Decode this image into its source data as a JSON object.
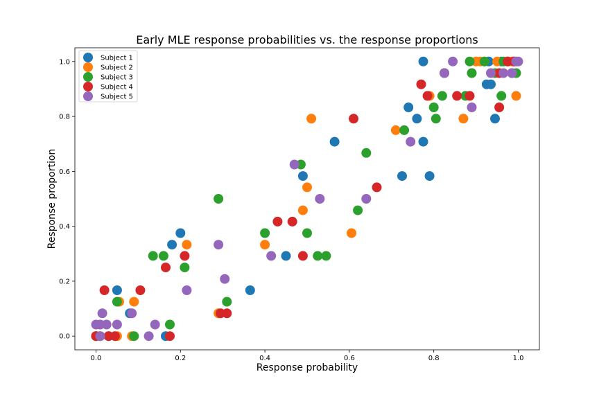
{
  "colors": {
    "Subject 1": "#1f77b4",
    "Subject 2": "#ff7f0e",
    "Subject 3": "#2ca02c",
    "Subject 4": "#d62728",
    "Subject 5": "#9467bd"
  },
  "chart_data": {
    "type": "scatter",
    "title": "Early MLE response probabilities vs. the response proportions",
    "xlabel": "Response probability",
    "ylabel": "Response proportion",
    "xlim": [
      -0.05,
      1.05
    ],
    "ylim": [
      -0.05,
      1.05
    ],
    "xticks": [
      0.0,
      0.2,
      0.4,
      0.6,
      0.8,
      1.0
    ],
    "yticks": [
      0.0,
      0.2,
      0.4,
      0.6,
      0.8,
      1.0
    ],
    "tick_labels": [
      "0.0",
      "0.2",
      "0.4",
      "0.6",
      "0.8",
      "1.0"
    ],
    "grid": false,
    "legend": "top-left",
    "series": [
      {
        "name": "Subject 1",
        "points": [
          [
            0.0,
            0.0
          ],
          [
            0.01,
            0.0
          ],
          [
            0.03,
            0.0
          ],
          [
            0.05,
            0.167
          ],
          [
            0.08,
            0.083
          ],
          [
            0.165,
            0.0
          ],
          [
            0.18,
            0.333
          ],
          [
            0.2,
            0.375
          ],
          [
            0.365,
            0.167
          ],
          [
            0.45,
            0.292
          ],
          [
            0.49,
            0.583
          ],
          [
            0.565,
            0.708
          ],
          [
            0.725,
            0.583
          ],
          [
            0.74,
            0.833
          ],
          [
            0.76,
            0.792
          ],
          [
            0.775,
            0.708
          ],
          [
            0.775,
            1.0
          ],
          [
            0.79,
            0.583
          ],
          [
            0.925,
            0.917
          ],
          [
            0.935,
            0.917
          ],
          [
            0.945,
            0.792
          ],
          [
            0.93,
            1.0
          ],
          [
            0.96,
            1.0
          ],
          [
            0.985,
            0.958
          ],
          [
            0.99,
            1.0
          ]
        ]
      },
      {
        "name": "Subject 2",
        "points": [
          [
            0.0,
            0.0
          ],
          [
            0.01,
            0.0
          ],
          [
            0.05,
            0.0
          ],
          [
            0.055,
            0.125
          ],
          [
            0.085,
            0.0
          ],
          [
            0.09,
            0.125
          ],
          [
            0.215,
            0.333
          ],
          [
            0.29,
            0.083
          ],
          [
            0.4,
            0.333
          ],
          [
            0.49,
            0.458
          ],
          [
            0.5,
            0.542
          ],
          [
            0.51,
            0.792
          ],
          [
            0.605,
            0.375
          ],
          [
            0.71,
            0.75
          ],
          [
            0.79,
            0.875
          ],
          [
            0.87,
            0.792
          ],
          [
            0.9,
            1.0
          ],
          [
            0.91,
            1.0
          ],
          [
            0.92,
            1.0
          ],
          [
            0.95,
            1.0
          ],
          [
            0.975,
            1.0
          ],
          [
            0.985,
            1.0
          ],
          [
            0.995,
            0.875
          ]
        ]
      },
      {
        "name": "Subject 3",
        "points": [
          [
            0.0,
            0.0
          ],
          [
            0.05,
            0.125
          ],
          [
            0.09,
            0.0
          ],
          [
            0.135,
            0.292
          ],
          [
            0.16,
            0.292
          ],
          [
            0.175,
            0.042
          ],
          [
            0.21,
            0.25
          ],
          [
            0.29,
            0.5
          ],
          [
            0.31,
            0.125
          ],
          [
            0.4,
            0.375
          ],
          [
            0.485,
            0.625
          ],
          [
            0.5,
            0.375
          ],
          [
            0.525,
            0.292
          ],
          [
            0.545,
            0.292
          ],
          [
            0.62,
            0.458
          ],
          [
            0.64,
            0.667
          ],
          [
            0.73,
            0.75
          ],
          [
            0.8,
            0.833
          ],
          [
            0.805,
            0.792
          ],
          [
            0.82,
            0.875
          ],
          [
            0.875,
            0.875
          ],
          [
            0.885,
            1.0
          ],
          [
            0.89,
            0.958
          ],
          [
            0.92,
            1.0
          ],
          [
            0.945,
            0.958
          ],
          [
            0.96,
            0.875
          ],
          [
            0.965,
            1.0
          ],
          [
            0.995,
            0.958
          ]
        ]
      },
      {
        "name": "Subject 4",
        "points": [
          [
            0.0,
            0.0
          ],
          [
            0.02,
            0.167
          ],
          [
            0.03,
            0.0
          ],
          [
            0.045,
            0.0
          ],
          [
            0.105,
            0.167
          ],
          [
            0.165,
            0.25
          ],
          [
            0.175,
            0.0
          ],
          [
            0.21,
            0.292
          ],
          [
            0.295,
            0.083
          ],
          [
            0.31,
            0.083
          ],
          [
            0.43,
            0.417
          ],
          [
            0.465,
            0.417
          ],
          [
            0.49,
            0.292
          ],
          [
            0.61,
            0.792
          ],
          [
            0.665,
            0.542
          ],
          [
            0.77,
            0.917
          ],
          [
            0.785,
            0.875
          ],
          [
            0.825,
            0.958
          ],
          [
            0.855,
            0.875
          ],
          [
            0.885,
            0.875
          ],
          [
            0.955,
            0.833
          ],
          [
            0.955,
            0.958
          ],
          [
            0.975,
            1.0
          ],
          [
            0.99,
            1.0
          ]
        ]
      },
      {
        "name": "Subject 5",
        "points": [
          [
            0.0,
            0.042
          ],
          [
            0.01,
            0.0
          ],
          [
            0.015,
            0.083
          ],
          [
            0.01,
            0.042
          ],
          [
            0.025,
            0.042
          ],
          [
            0.05,
            0.042
          ],
          [
            0.085,
            0.083
          ],
          [
            0.125,
            0.0
          ],
          [
            0.14,
            0.042
          ],
          [
            0.215,
            0.167
          ],
          [
            0.29,
            0.333
          ],
          [
            0.305,
            0.208
          ],
          [
            0.415,
            0.292
          ],
          [
            0.47,
            0.625
          ],
          [
            0.53,
            0.5
          ],
          [
            0.64,
            0.5
          ],
          [
            0.745,
            0.708
          ],
          [
            0.825,
            0.958
          ],
          [
            0.845,
            1.0
          ],
          [
            0.89,
            0.833
          ],
          [
            0.935,
            0.958
          ],
          [
            0.965,
            0.958
          ],
          [
            0.985,
            0.958
          ],
          [
            0.995,
            1.0
          ],
          [
            1.0,
            1.0
          ]
        ]
      }
    ]
  }
}
